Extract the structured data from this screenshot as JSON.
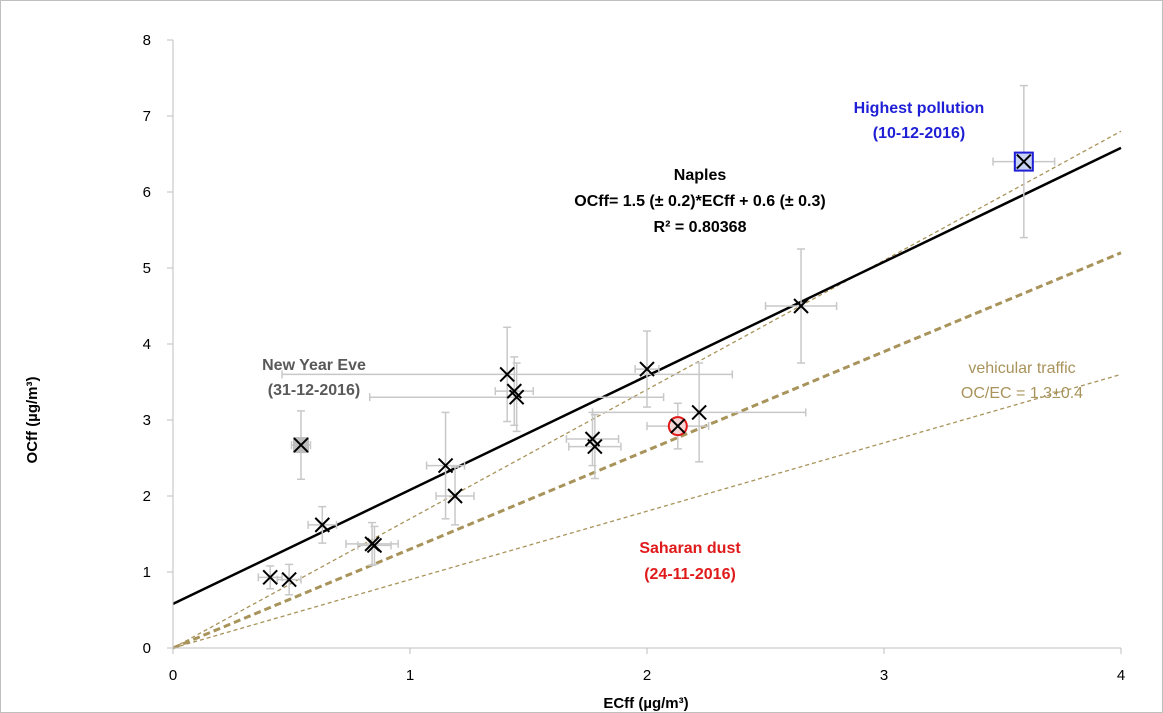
{
  "chart_data": {
    "type": "scatter",
    "title": "",
    "xlabel": "ECff (µg/m³)",
    "ylabel": "OCff (µg/m³)",
    "xlim": [
      0,
      4
    ],
    "ylim": [
      0,
      8
    ],
    "x_ticks": [
      "0",
      "1",
      "2",
      "3",
      "4"
    ],
    "y_ticks": [
      "0",
      "1",
      "2",
      "3",
      "4",
      "5",
      "6",
      "7",
      "8"
    ],
    "grid": false,
    "points": [
      {
        "x": 0.41,
        "y": 0.93,
        "xerr": 0.05,
        "yerr": 0.15
      },
      {
        "x": 0.49,
        "y": 0.9,
        "xerr": 0.05,
        "yerr": 0.2
      },
      {
        "x": 0.54,
        "y": 2.67,
        "xerr": 0.04,
        "yerr": 0.45,
        "highlight": "new_year"
      },
      {
        "x": 0.63,
        "y": 1.62,
        "xerr": 0.06,
        "yerr": 0.24
      },
      {
        "x": 0.84,
        "y": 1.37,
        "xerr": 0.11,
        "yerr": 0.28
      },
      {
        "x": 0.85,
        "y": 1.35,
        "xerr": 0.07,
        "yerr": 0.25
      },
      {
        "x": 1.15,
        "y": 2.4,
        "xerr": 0.08,
        "yerr": 0.7
      },
      {
        "x": 1.19,
        "y": 2.0,
        "xerr": 0.08,
        "yerr": 0.38
      },
      {
        "x": 1.41,
        "y": 3.6,
        "xerr": 0.95,
        "yerr": 0.62
      },
      {
        "x": 1.44,
        "y": 3.38,
        "xerr": 0.08,
        "yerr": 0.45
      },
      {
        "x": 1.45,
        "y": 3.3,
        "xerr": 0.62,
        "yerr": 0.45
      },
      {
        "x": 1.77,
        "y": 2.75,
        "xerr": 0.11,
        "yerr": 0.35
      },
      {
        "x": 1.78,
        "y": 2.65,
        "xerr": 0.11,
        "yerr": 0.42
      },
      {
        "x": 2.0,
        "y": 3.67,
        "xerr": 0.05,
        "yerr": 0.5
      },
      {
        "x": 2.13,
        "y": 2.92,
        "xerr": 0.13,
        "yerr": 0.3,
        "highlight": "saharan_dust"
      },
      {
        "x": 2.22,
        "y": 3.1,
        "xerr": 0.45,
        "yerr": 0.65
      },
      {
        "x": 2.65,
        "y": 4.5,
        "xerr": 0.15,
        "yerr": 0.75
      },
      {
        "x": 3.59,
        "y": 6.4,
        "xerr": 0.13,
        "yerr": 1.0,
        "highlight": "highest_pollution"
      }
    ],
    "regression": {
      "slope": 1.5,
      "intercept": 0.58,
      "label": "Naples"
    },
    "reference_lines": [
      {
        "slope": 1.3,
        "style": "thick-dashed"
      },
      {
        "slope": 1.7,
        "style": "thin-dashed"
      },
      {
        "slope": 0.9,
        "style": "thin-dashed"
      }
    ],
    "annotations": {
      "naples_title": "Naples",
      "equation": "OCff= 1.5 (± 0.2)*ECff + 0.6 (± 0.3)",
      "r_squared": "R² = 0.80368",
      "highest_pollution": "Highest pollution",
      "highest_pollution_date": "(10-12-2016)",
      "new_year": "New Year Eve",
      "new_year_date": "(31-12-2016)",
      "saharan_dust": "Saharan dust",
      "saharan_dust_date": "(24-11-2016)",
      "vehicular": "vehicular traffic",
      "vehicular_ratio": "OC/EC = 1.3±0.4"
    },
    "colors": {
      "regression": "#000000",
      "reference": "#a8935a",
      "errorbar": "#c8c8c8",
      "highest_pollution": "#1f1fd6",
      "saharan_dust": "#e01a1a",
      "vehicular": "#a8935a",
      "new_year": "#595959",
      "axis": "#bfbfbf"
    }
  }
}
